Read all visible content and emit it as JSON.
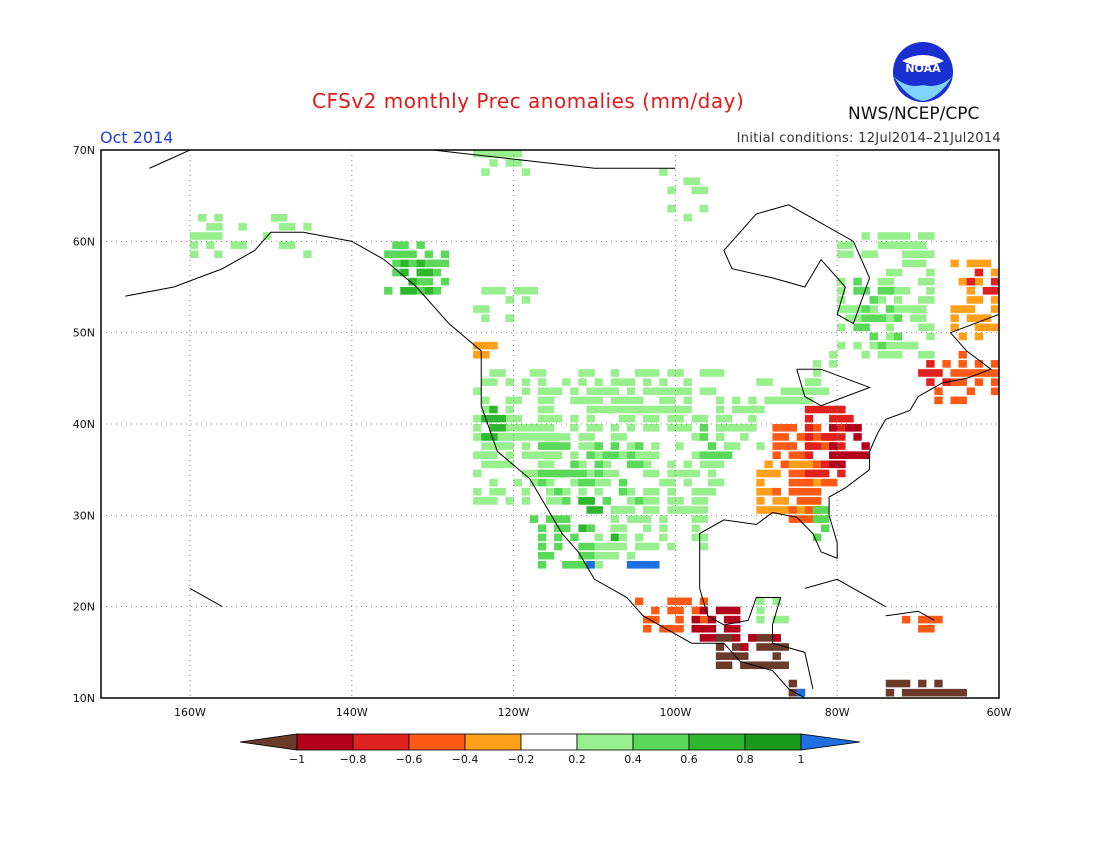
{
  "header": {
    "title": "CFSv2 monthly Prec anomalies (mm/day)",
    "month": "Oct 2014",
    "initial_conditions": "Initial conditions: 12Jul2014–21Jul2014",
    "agency": "NWS/NCEP/CPC",
    "logo_text": "NOAA"
  },
  "map": {
    "region": "North America",
    "lon_range": [
      -171,
      -60
    ],
    "lat_range": [
      10,
      70
    ],
    "lat_ticks": [
      "10N",
      "20N",
      "30N",
      "40N",
      "50N",
      "60N",
      "70N"
    ],
    "lon_ticks": [
      "160W",
      "140W",
      "120W",
      "100W",
      "80W",
      "60W"
    ],
    "grid": "dotted",
    "anomaly_regions": [
      {
        "area": "US Southeast / Carolinas coast",
        "category": "-0.6 to -0.8"
      },
      {
        "area": "Georgia / Alabama / Tennessee",
        "category": "-0.4 to -0.6"
      },
      {
        "area": "Gulf coast Florida panhandle",
        "category": "-0.2 to -0.4"
      },
      {
        "area": "Central America (Guatemala/Honduras)",
        "category": "< -1"
      },
      {
        "area": "Southern Mexico",
        "category": "-0.6 to -1"
      },
      {
        "area": "Atlantic Canada / Nova Scotia",
        "category": "-0.4 to -0.8"
      },
      {
        "area": "Western & Central US",
        "category": "0.2 to 0.6"
      },
      {
        "area": "Northwest Mexico (Sinaloa)",
        "category": "0.6 to 0.8"
      },
      {
        "area": "Mexico Pacific coast",
        "category": "> 1"
      },
      {
        "area": "Quebec / Labrador",
        "category": "0.2 to 0.6"
      },
      {
        "area": "Alaska panhandle",
        "category": "0.4 to 0.8"
      },
      {
        "area": "Pacific Northwest coast",
        "category": "-0.4 to -0.6"
      }
    ]
  },
  "colorbar": {
    "labels": [
      "−1",
      "−0.8",
      "−0.6",
      "−0.4",
      "−0.2",
      "0.2",
      "0.4",
      "0.6",
      "0.8",
      "1"
    ],
    "colors": [
      "#6b3a2a",
      "#b3001b",
      "#e0221f",
      "#ff5a14",
      "#ffa01a",
      "#ffffff",
      "#98ef8e",
      "#5ad85a",
      "#2fb62f",
      "#1a9a1a",
      "#1e6fe0"
    ]
  }
}
